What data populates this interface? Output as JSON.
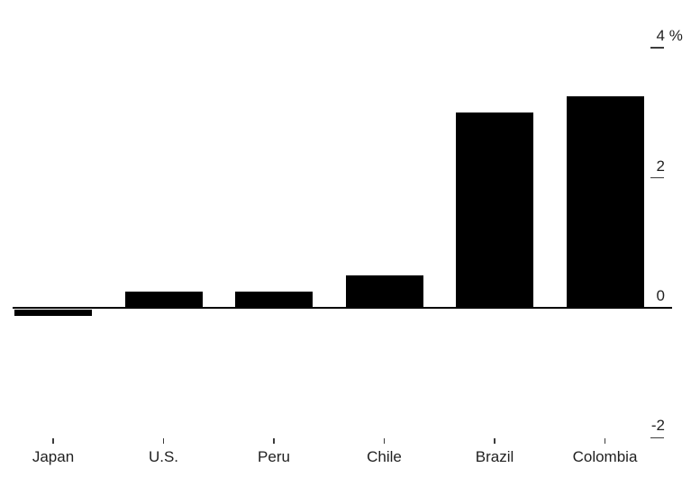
{
  "chart_data": {
    "type": "bar",
    "title": "",
    "categories": [
      "Japan",
      "U.S.",
      "Peru",
      "Chile",
      "Brazil",
      "Colombia"
    ],
    "values": [
      -0.1,
      0.25,
      0.25,
      0.5,
      3.0,
      3.25
    ],
    "unit": "%",
    "xlabel": "",
    "ylabel": "%",
    "ylim": [
      -2.6,
      4.4
    ],
    "grid": false,
    "legend_position": "none",
    "y_ticks": [
      {
        "label": "4",
        "suffix": " %",
        "value": 4
      },
      {
        "label": "2",
        "suffix": "",
        "value": 2
      },
      {
        "label": "0",
        "suffix": "",
        "value": 0
      },
      {
        "label": "-2",
        "suffix": "",
        "value": -2
      }
    ],
    "colors": {
      "bar": "#000000",
      "axis": "#000000",
      "tick": "#3c3c3c",
      "text": "#1f1f1f",
      "background": "#ffffff"
    }
  }
}
